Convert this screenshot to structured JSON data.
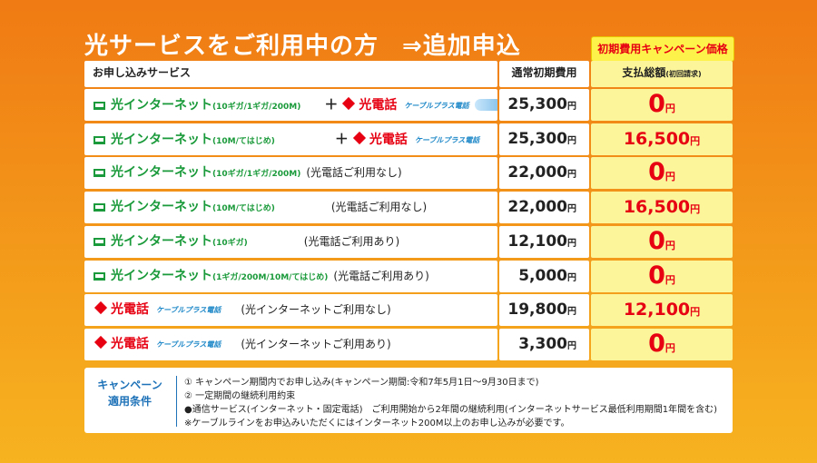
{
  "title": "光サービスをご利用中の方",
  "title_suffix": "⇒追加申込",
  "campaign_badge": "初期費用キャンペーン価格",
  "headers": {
    "service": "お申し込みサービス",
    "normal_fee": "通常初期費用",
    "payment": "支払総額",
    "payment_note": "(初回請求)"
  },
  "rows": [
    {
      "net": "光インターネット",
      "net_spec": "(10ギガ/1ギガ/200M)",
      "plus": "＋",
      "tel": "光電話",
      "cable": "ケーブルプラス電話",
      "note": "",
      "normal_price": "25,300",
      "pay": "0"
    },
    {
      "net": "光インターネット",
      "net_spec": "(10M/てはじめ)",
      "plus": "＋",
      "tel": "光電話",
      "cable": "ケーブルプラス電話",
      "note": "",
      "normal_price": "25,300",
      "pay": "16,500"
    },
    {
      "net": "光インターネット",
      "net_spec": "(10ギガ/1ギガ/200M)",
      "note": "(光電話ご利用なし)",
      "normal_price": "22,000",
      "pay": "0"
    },
    {
      "net": "光インターネット",
      "net_spec": "(10M/てはじめ)",
      "note": "(光電話ご利用なし)",
      "normal_price": "22,000",
      "pay": "16,500"
    },
    {
      "net": "光インターネット",
      "net_spec": "(10ギガ)",
      "note": "(光電話ご利用あり)",
      "normal_price": "12,100",
      "pay": "0"
    },
    {
      "net": "光インターネット",
      "net_spec": "(1ギガ/200M/10M/てはじめ)",
      "note": "(光電話ご利用あり)",
      "normal_price": "5,000",
      "pay": "0"
    },
    {
      "tel": "光電話",
      "cable": "ケーブルプラス電話",
      "note": "(光インターネットご利用なし)",
      "normal_price": "19,800",
      "pay": "12,100"
    },
    {
      "tel": "光電話",
      "cable": "ケーブルプラス電話",
      "note": "(光インターネットご利用あり)",
      "normal_price": "3,300",
      "pay": "0"
    }
  ],
  "yen": "円",
  "conditions": {
    "title_line1": "キャンペーン",
    "title_line2": "適用条件",
    "lines": [
      "① キャンペーン期間内でお申し込み(キャンペーン期間:令和7年5月1日～9月30日まで)",
      "② 一定期間の継続利用約束",
      "●通信サービス(インターネット・固定電話)　ご利用開始から2年間の継続利用(インターネットサービス最低利用期間1年間を含む)",
      "※ケーブルラインをお申込みいただくにはインターネット200M以上のお申し込みが必要です。"
    ]
  },
  "colors": {
    "accent_red": "#e60012",
    "net_green": "#1a9a3a",
    "highlight_yellow": "#fdf59a",
    "bg_orange": "#f39a1a"
  }
}
